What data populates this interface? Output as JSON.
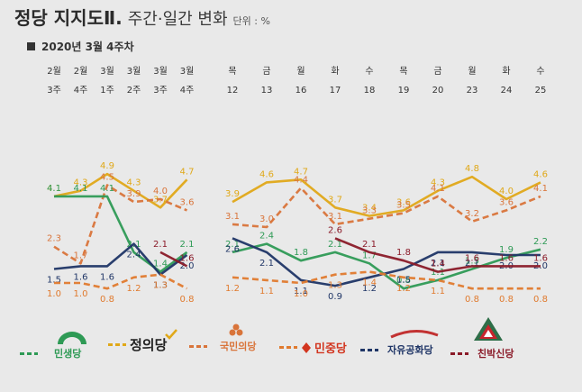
{
  "header": {
    "title": "정당 지지도Ⅱ.",
    "subtitle": "주간·일간 변화",
    "unit": "단위 : %",
    "period": "2020년 3월 4주차"
  },
  "chart_data": {
    "type": "line",
    "categories": [
      {
        "top": "2월",
        "bottom": "3주"
      },
      {
        "top": "2월",
        "bottom": "4주"
      },
      {
        "top": "3월",
        "bottom": "1주"
      },
      {
        "top": "3월",
        "bottom": "2주"
      },
      {
        "top": "3월",
        "bottom": "3주"
      },
      {
        "top": "3월",
        "bottom": "4주"
      },
      {
        "top": "목",
        "bottom": "12"
      },
      {
        "top": "금",
        "bottom": "13"
      },
      {
        "top": "월",
        "bottom": "16"
      },
      {
        "top": "화",
        "bottom": "17"
      },
      {
        "top": "수",
        "bottom": "18"
      },
      {
        "top": "목",
        "bottom": "19"
      },
      {
        "top": "금",
        "bottom": "20"
      },
      {
        "top": "월",
        "bottom": "23"
      },
      {
        "top": "화",
        "bottom": "24"
      },
      {
        "top": "수",
        "bottom": "25"
      }
    ],
    "ylim": [
      0,
      5.2
    ],
    "series": [
      {
        "name": "정의당",
        "color": "#e0a818",
        "weekly": [
          4.1,
          4.3,
          4.9,
          4.3,
          3.7,
          4.7
        ],
        "daily": [
          3.9,
          4.6,
          4.7,
          3.7,
          3.4,
          3.6,
          4.3,
          4.8,
          4.0,
          4.6
        ]
      },
      {
        "name": "국민의당",
        "color": "#d9743a",
        "weekly": [
          2.3,
          1.7,
          4.5,
          3.9,
          4.0,
          3.6
        ],
        "daily": [
          3.1,
          3.0,
          4.4,
          3.1,
          3.3,
          3.5,
          4.1,
          3.2,
          3.6,
          4.1
        ]
      },
      {
        "name": "민생당",
        "color": "#2e9a55",
        "weekly": [
          4.1,
          4.1,
          4.1,
          2.1,
          1.4,
          2.1
        ],
        "daily": [
          2.1,
          2.4,
          1.8,
          2.1,
          1.7,
          0.8,
          1.1,
          1.5,
          1.9,
          2.2
        ]
      },
      {
        "name": "자유공화당",
        "color": "#1f3566",
        "weekly": [
          1.5,
          1.6,
          1.6,
          2.4,
          1.3,
          2.0
        ],
        "daily": [
          2.6,
          2.1,
          1.1,
          0.9,
          1.2,
          1.5,
          2.1,
          2.1,
          2.0,
          2.0
        ]
      },
      {
        "name": "친박신당",
        "color": "#8a1a28",
        "weekly": [
          null,
          null,
          null,
          null,
          2.1,
          1.6
        ],
        "daily": [
          null,
          null,
          null,
          2.6,
          2.1,
          1.8,
          1.4,
          1.6,
          1.6,
          1.6
        ]
      },
      {
        "name": "민중당",
        "color": "#e07a2e",
        "weekly": [
          1.0,
          1.0,
          0.8,
          1.2,
          1.3,
          0.8
        ],
        "daily": [
          1.2,
          1.1,
          1.0,
          1.3,
          1.4,
          1.2,
          1.1,
          0.8,
          0.8,
          0.8
        ]
      }
    ]
  },
  "legend": [
    {
      "name": "민생당",
      "color": "#2e9a55",
      "dash_color": "#2e9a55",
      "icon": "minsaeng-logo"
    },
    {
      "name": "정의당",
      "color": "#222222",
      "dash_color": "#e0a818",
      "icon": "justice-logo"
    },
    {
      "name": "국민의당",
      "color": "#d9743a",
      "dash_color": "#d9743a",
      "icon": "peoples-logo"
    },
    {
      "name": "민중당",
      "color": "#d2351f",
      "dash_color": "#e07a2e",
      "icon": "minjung-logo"
    },
    {
      "name": "자유공화당",
      "color": "#1f3566",
      "dash_color": "#1f3566",
      "icon": "liberty-republican-logo"
    },
    {
      "name": "친박신당",
      "color": "#8a1a28",
      "dash_color": "#8a1a28",
      "icon": "probak-logo"
    }
  ]
}
